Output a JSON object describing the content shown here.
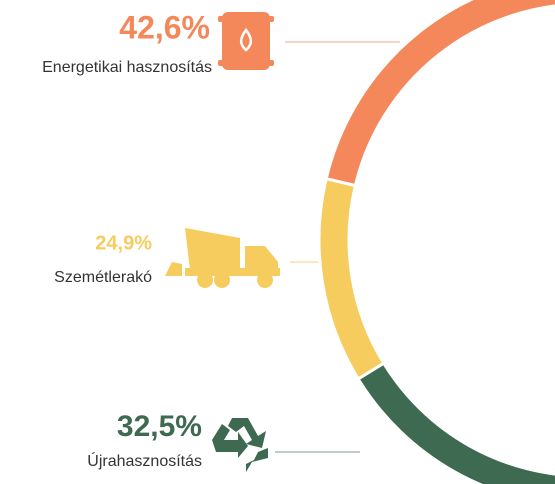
{
  "chart_data": {
    "type": "donut",
    "categories": [
      "Energetikai hasznosítás",
      "Szemétlerakó",
      "Újrahasznosítás"
    ],
    "values": [
      42.6,
      24.9,
      32.5
    ],
    "value_labels": [
      "42,6%",
      "24,9%",
      "32,5%"
    ],
    "colors": [
      "#f4885b",
      "#f6cc5e",
      "#3d6a50"
    ]
  }
}
